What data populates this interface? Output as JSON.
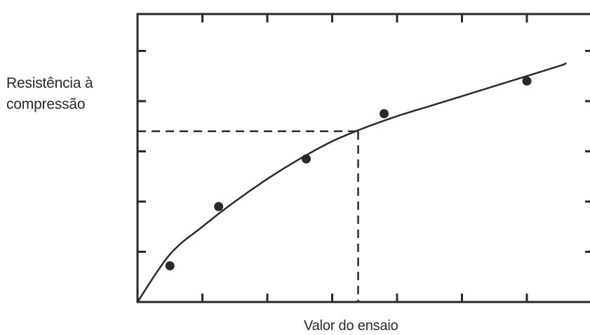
{
  "chart_data": {
    "type": "scatter",
    "title": "",
    "xlabel": "Valor do ensaio",
    "ylabel_lines": [
      "Resistência à",
      "compressão"
    ],
    "xlim": [
      0,
      7
    ],
    "ylim": [
      0,
      5.5
    ],
    "x_ticks": [
      1,
      2,
      3,
      4,
      5,
      6,
      7
    ],
    "y_ticks": [
      1,
      2,
      3,
      4,
      5
    ],
    "grid": false,
    "series": [
      {
        "points": [
          {
            "x": 0.5,
            "y": 0.72
          },
          {
            "x": 1.25,
            "y": 1.9
          },
          {
            "x": 2.6,
            "y": 2.85
          },
          {
            "x": 3.8,
            "y": 3.75
          },
          {
            "x": 6.0,
            "y": 4.4
          }
        ]
      }
    ],
    "fit_curve": [
      {
        "x": 0,
        "y": 0
      },
      {
        "x": 0.5,
        "y": 0.95
      },
      {
        "x": 1,
        "y": 1.5
      },
      {
        "x": 1.5,
        "y": 2.0
      },
      {
        "x": 2,
        "y": 2.45
      },
      {
        "x": 2.5,
        "y": 2.85
      },
      {
        "x": 3,
        "y": 3.2
      },
      {
        "x": 3.5,
        "y": 3.47
      },
      {
        "x": 4,
        "y": 3.7
      },
      {
        "x": 4.5,
        "y": 3.9
      },
      {
        "x": 5,
        "y": 4.1
      },
      {
        "x": 5.5,
        "y": 4.3
      },
      {
        "x": 6,
        "y": 4.5
      },
      {
        "x": 6.5,
        "y": 4.7
      },
      {
        "x": 6.6,
        "y": 4.75
      }
    ],
    "reference": {
      "x": 3.4,
      "y": 3.4
    },
    "colors": {
      "ink": "#2a2a2a"
    }
  }
}
